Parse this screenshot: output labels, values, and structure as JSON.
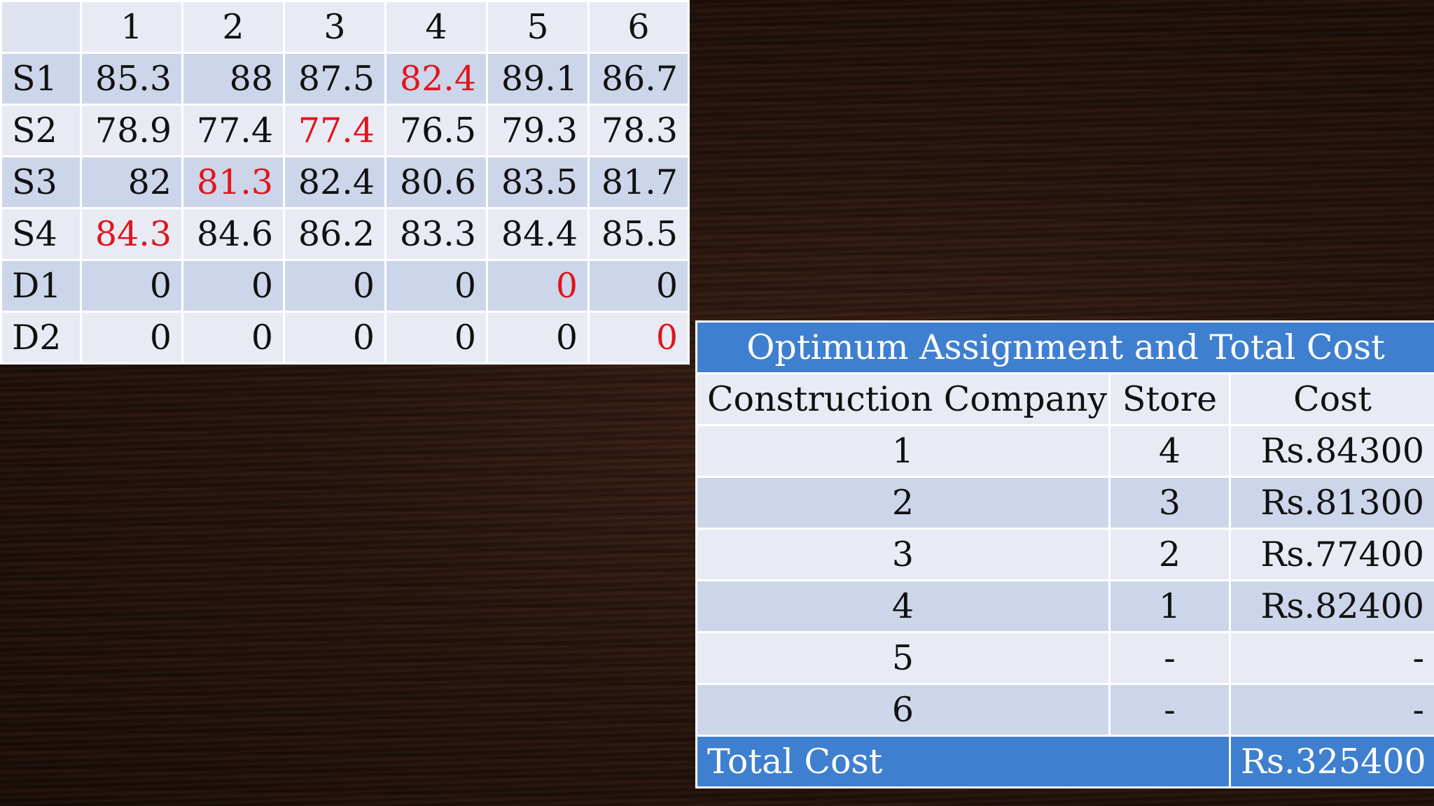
{
  "cost_matrix": {
    "columns": [
      "1",
      "2",
      "3",
      "4",
      "5",
      "6"
    ],
    "rows": [
      {
        "label": "S1",
        "values": [
          "85.3",
          "88",
          "87.5",
          "82.4",
          "89.1",
          "86.7"
        ],
        "highlight": 3
      },
      {
        "label": "S2",
        "values": [
          "78.9",
          "77.4",
          "77.4",
          "76.5",
          "79.3",
          "78.3"
        ],
        "highlight": 2
      },
      {
        "label": "S3",
        "values": [
          "82",
          "81.3",
          "82.4",
          "80.6",
          "83.5",
          "81.7"
        ],
        "highlight": 1
      },
      {
        "label": "S4",
        "values": [
          "84.3",
          "84.6",
          "86.2",
          "83.3",
          "84.4",
          "85.5"
        ],
        "highlight": 0
      },
      {
        "label": "D1",
        "values": [
          "0",
          "0",
          "0",
          "0",
          "0",
          "0"
        ],
        "highlight": 4
      },
      {
        "label": "D2",
        "values": [
          "0",
          "0",
          "0",
          "0",
          "0",
          "0"
        ],
        "highlight": 5
      }
    ],
    "highlight_color": "#e0151b"
  },
  "result": {
    "title": "Optimum Assignment and Total Cost",
    "headers": [
      "Construction Company",
      "Store",
      "Cost"
    ],
    "rows": [
      {
        "company": "1",
        "store": "4",
        "cost": "Rs.84300"
      },
      {
        "company": "2",
        "store": "3",
        "cost": "Rs.81300"
      },
      {
        "company": "3",
        "store": "2",
        "cost": "Rs.77400"
      },
      {
        "company": "4",
        "store": "1",
        "cost": "Rs.82400"
      },
      {
        "company": "5",
        "store": "-",
        "cost": "-"
      },
      {
        "company": "6",
        "store": "-",
        "cost": "-"
      }
    ],
    "total_label": "Total Cost",
    "total_value": "Rs.325400",
    "accent_color": "#3f7fd0"
  }
}
